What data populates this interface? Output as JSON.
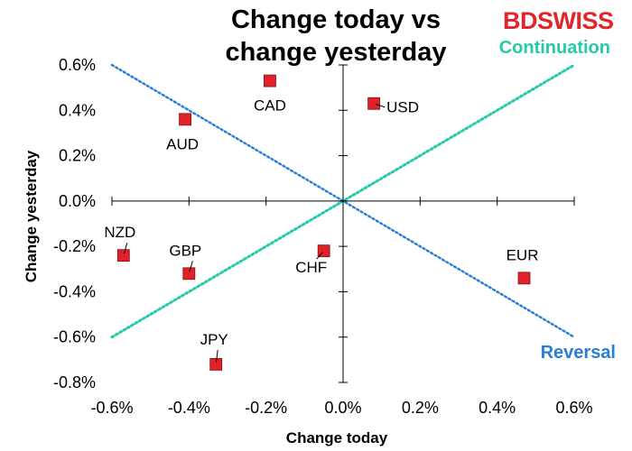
{
  "brand": {
    "part1": "BD",
    "part2": "SWISS",
    "color_bd": "#e0252b",
    "color_swiss": "#e0252b"
  },
  "chart_data": {
    "type": "scatter",
    "title_line1": "Change today vs",
    "title_line2": "change yesterday",
    "xlabel": "Change today",
    "ylabel": "Change yesterday",
    "xlim": [
      -0.006,
      0.006
    ],
    "ylim": [
      -0.008,
      0.006
    ],
    "x_ticks": [
      -0.006,
      -0.004,
      -0.002,
      0.0,
      0.002,
      0.004,
      0.006
    ],
    "x_tick_labels": [
      "-0.6%",
      "-0.4%",
      "-0.2%",
      "0.0%",
      "0.2%",
      "0.4%",
      "0.6%"
    ],
    "y_ticks": [
      0.006,
      0.004,
      0.002,
      0.0,
      -0.002,
      -0.004,
      -0.006,
      -0.008
    ],
    "y_tick_labels": [
      "0.6%",
      "0.4%",
      "0.2%",
      "0.0%",
      "-0.2%",
      "-0.4%",
      "-0.6%",
      "-0.8%"
    ],
    "points": [
      {
        "label": "CAD",
        "x": -0.0019,
        "y": 0.0053
      },
      {
        "label": "USD",
        "x": 0.0008,
        "y": 0.0043
      },
      {
        "label": "AUD",
        "x": -0.0041,
        "y": 0.0036
      },
      {
        "label": "NZD",
        "x": -0.0057,
        "y": -0.0024
      },
      {
        "label": "GBP",
        "x": -0.004,
        "y": -0.0032
      },
      {
        "label": "CHF",
        "x": -0.0005,
        "y": -0.0022
      },
      {
        "label": "EUR",
        "x": 0.0047,
        "y": -0.0034
      },
      {
        "label": "JPY",
        "x": -0.0033,
        "y": -0.0072
      }
    ],
    "lines": [
      {
        "name": "Continuation",
        "from": [
          -0.006,
          -0.006
        ],
        "to": [
          0.006,
          0.006
        ],
        "color": "#26c9a8"
      },
      {
        "name": "Reversal",
        "from": [
          -0.006,
          0.006
        ],
        "to": [
          0.006,
          -0.006
        ],
        "color": "#2a7fd4"
      }
    ],
    "point_color": "#e0202a",
    "grid": false
  }
}
